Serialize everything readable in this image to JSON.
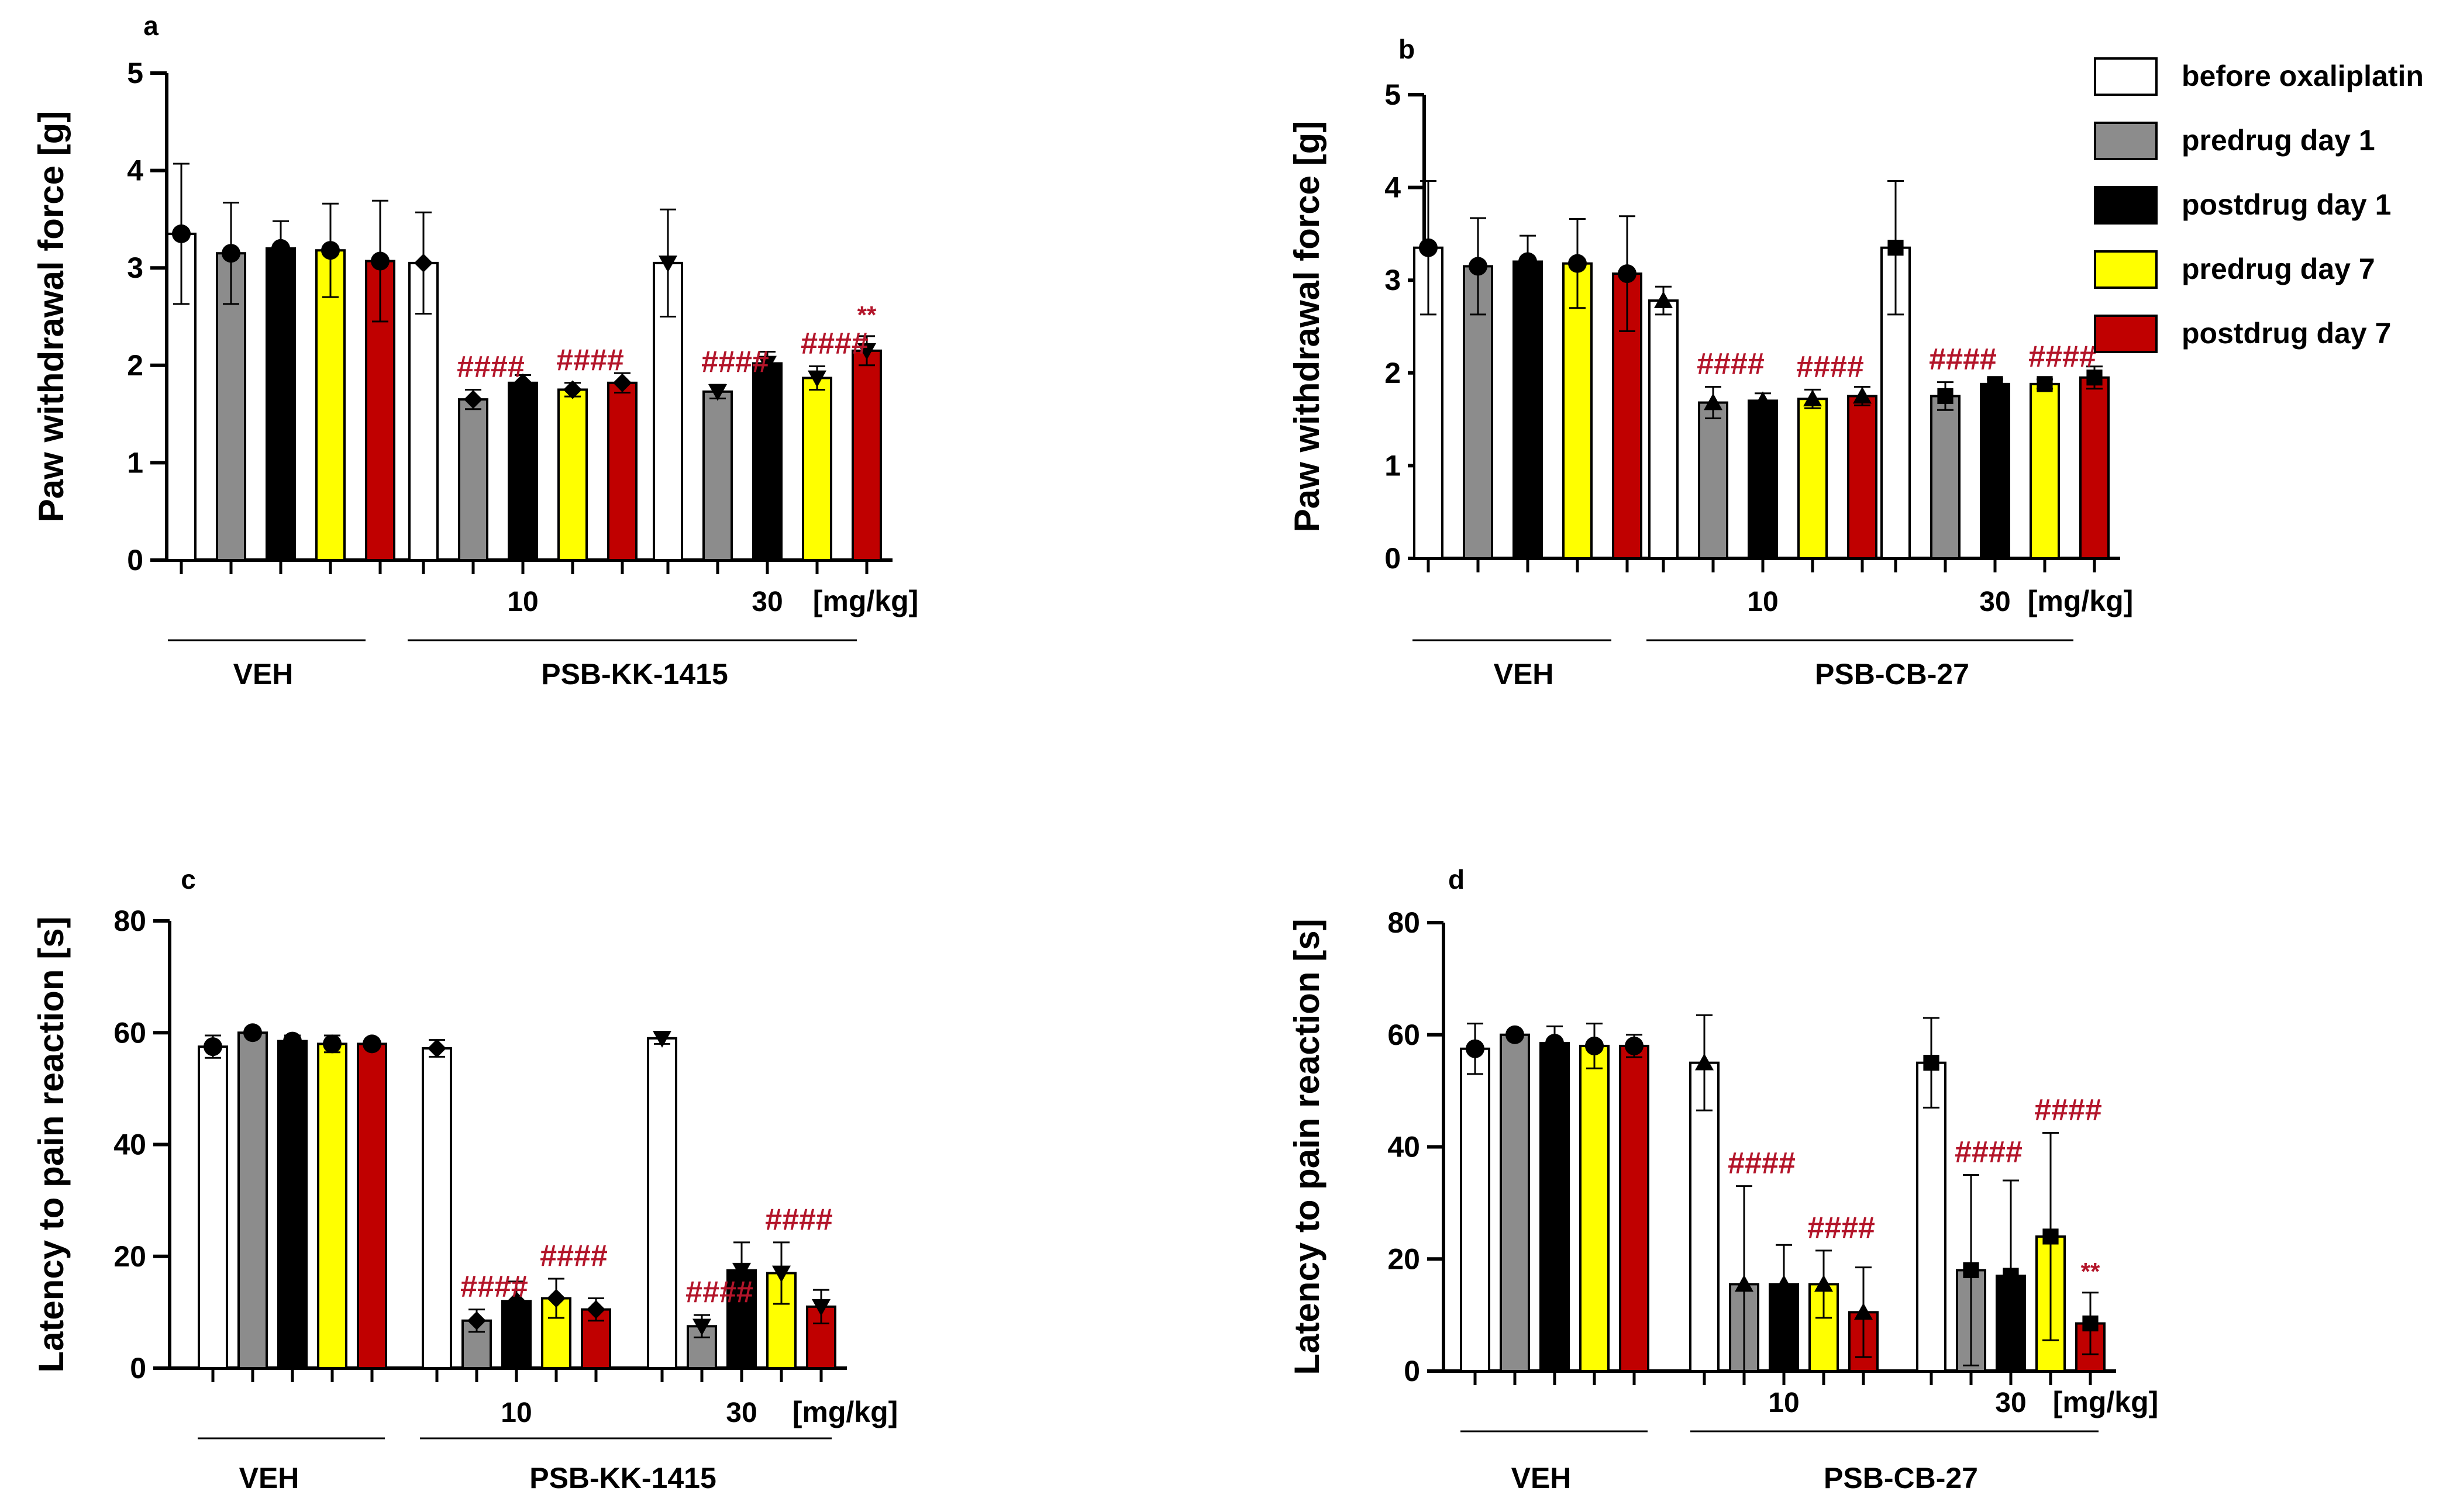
{
  "legend": [
    {
      "label": "before oxaliplatin",
      "color": "#ffffff"
    },
    {
      "label": "predrug day 1",
      "color": "#8c8c8c"
    },
    {
      "label": "postdrug day 1",
      "color": "#000000"
    },
    {
      "label": "predrug day 7",
      "color": "#ffff00"
    },
    {
      "label": "postdrug day 7",
      "color": "#c00000"
    }
  ],
  "colors": {
    "annotation": "#b3152a",
    "axis": "#000000"
  },
  "chart_data": [
    {
      "panel": "a",
      "type": "bar",
      "ylabel": "Paw withdrawal force [g]",
      "ylim": [
        0,
        5
      ],
      "yticks": [
        0,
        1,
        2,
        3,
        4,
        5
      ],
      "unit_label": "[mg/kg]",
      "groups": [
        {
          "dose": "",
          "values": [
            3.35,
            3.15,
            3.2,
            3.18,
            3.07
          ],
          "errors": [
            0.72,
            0.52,
            0.28,
            0.48,
            0.62
          ],
          "marker": "circle",
          "annotations": [
            "",
            "",
            "",
            "",
            ""
          ]
        },
        {
          "dose": "10",
          "values": [
            3.05,
            1.65,
            1.82,
            1.75,
            1.82
          ],
          "errors": [
            0.52,
            0.1,
            0.08,
            0.07,
            0.1
          ],
          "marker": "diamond",
          "annotations": [
            "",
            "####",
            "",
            "####",
            ""
          ]
        },
        {
          "dose": "30",
          "values": [
            3.05,
            1.73,
            2.02,
            1.87,
            2.15
          ],
          "errors": [
            0.55,
            0.07,
            0.12,
            0.12,
            0.15
          ],
          "marker": "triangle-down",
          "annotations": [
            "",
            "####",
            "",
            "####",
            "**"
          ]
        }
      ],
      "drug_labels": [
        "VEH",
        "PSB-KK-1415"
      ]
    },
    {
      "panel": "b",
      "type": "bar",
      "ylabel": "Paw withdrawal force [g]",
      "ylim": [
        0,
        5
      ],
      "yticks": [
        0,
        1,
        2,
        3,
        4,
        5
      ],
      "unit_label": "[mg/kg]",
      "groups": [
        {
          "dose": "",
          "values": [
            3.35,
            3.15,
            3.2,
            3.18,
            3.07
          ],
          "errors": [
            0.72,
            0.52,
            0.28,
            0.48,
            0.62
          ],
          "marker": "circle",
          "annotations": [
            "",
            "",
            "",
            "",
            ""
          ]
        },
        {
          "dose": "10",
          "values": [
            2.78,
            1.68,
            1.7,
            1.72,
            1.75
          ],
          "errors": [
            0.15,
            0.17,
            0.08,
            0.1,
            0.1
          ],
          "marker": "triangle-up",
          "annotations": [
            "",
            "####",
            "",
            "####",
            ""
          ]
        },
        {
          "dose": "30",
          "values": [
            3.35,
            1.75,
            1.88,
            1.88,
            1.95
          ],
          "errors": [
            0.72,
            0.15,
            0.05,
            0.05,
            0.12
          ],
          "marker": "square",
          "annotations": [
            "",
            "####",
            "",
            "####",
            ""
          ]
        }
      ],
      "drug_labels": [
        "VEH",
        "PSB-CB-27"
      ]
    },
    {
      "panel": "c",
      "type": "bar",
      "ylabel": "Latency to pain reaction [s]",
      "ylim": [
        0,
        80
      ],
      "yticks": [
        0,
        20,
        40,
        60,
        80
      ],
      "unit_label": "[mg/kg]",
      "groups": [
        {
          "dose": "",
          "values": [
            57.5,
            60,
            58.5,
            58,
            58
          ],
          "errors": [
            2,
            0.5,
            1,
            1.5,
            0.7
          ],
          "marker": "circle",
          "annotations": [
            "",
            "",
            "",
            "",
            ""
          ]
        },
        {
          "dose": "10",
          "values": [
            57.2,
            8.5,
            12,
            12.5,
            10.5
          ],
          "errors": [
            1.5,
            2,
            3.5,
            3.5,
            2
          ],
          "marker": "diamond",
          "annotations": [
            "",
            "####",
            "",
            "####",
            ""
          ]
        },
        {
          "dose": "30",
          "values": [
            59,
            7.5,
            17.5,
            17,
            11
          ],
          "errors": [
            1,
            2,
            5,
            5.5,
            3
          ],
          "marker": "triangle-down",
          "annotations": [
            "",
            "####",
            "",
            "####",
            ""
          ]
        }
      ],
      "drug_labels": [
        "VEH",
        "PSB-KK-1415"
      ]
    },
    {
      "panel": "d",
      "type": "bar",
      "ylabel": "Latency to pain reaction [s]",
      "ylim": [
        0,
        80
      ],
      "yticks": [
        0,
        20,
        40,
        60,
        80
      ],
      "unit_label": "[mg/kg]",
      "groups": [
        {
          "dose": "",
          "values": [
            57.5,
            60,
            58.5,
            58,
            58
          ],
          "errors": [
            4.5,
            0.5,
            3,
            4,
            2
          ],
          "marker": "circle",
          "annotations": [
            "",
            "",
            "",
            "",
            ""
          ]
        },
        {
          "dose": "10",
          "values": [
            55,
            15.5,
            15.5,
            15.5,
            10.5
          ],
          "errors": [
            8.5,
            17.5,
            7,
            6,
            8
          ],
          "marker": "triangle-up",
          "annotations": [
            "",
            "####",
            "",
            "####",
            ""
          ]
        },
        {
          "dose": "30",
          "values": [
            55,
            18,
            17,
            24,
            8.5
          ],
          "errors": [
            8,
            17,
            17,
            18.5,
            5.5
          ],
          "marker": "square",
          "annotations": [
            "",
            "####",
            "",
            "####",
            "**"
          ]
        }
      ],
      "drug_labels": [
        "VEH",
        "PSB-CB-27"
      ]
    }
  ]
}
